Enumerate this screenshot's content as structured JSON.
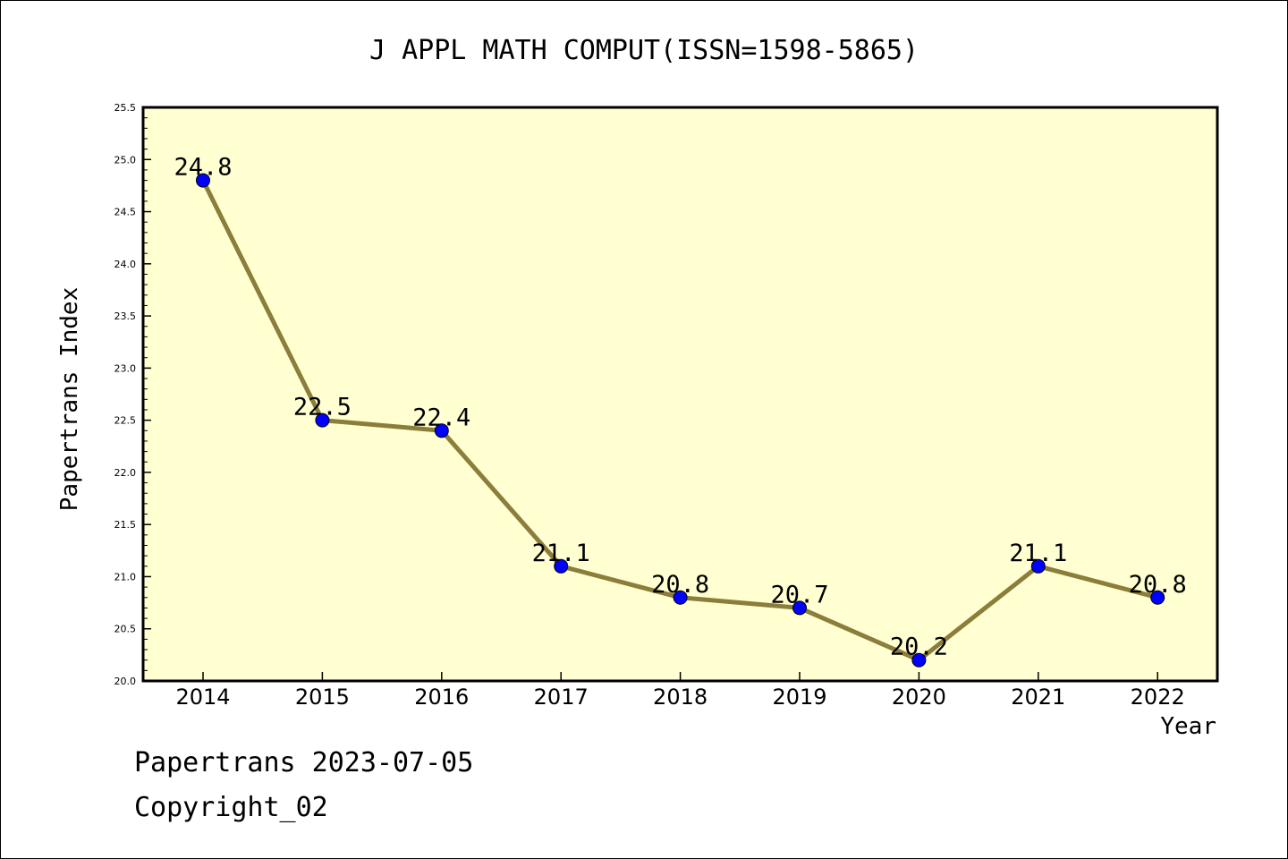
{
  "chart_data": {
    "type": "line",
    "title": "J APPL MATH COMPUT(ISSN=1598-5865)",
    "xlabel": "Year",
    "ylabel": "Papertrans Index",
    "x": [
      "2014",
      "2015",
      "2016",
      "2017",
      "2018",
      "2019",
      "2020",
      "2021",
      "2022"
    ],
    "series": [
      {
        "values": [
          24.8,
          22.5,
          22.4,
          21.1,
          20.8,
          20.7,
          20.2,
          21.1,
          20.8
        ],
        "labels": [
          "24.8",
          "22.5",
          "22.4",
          "21.1",
          "20.8",
          "20.7",
          "20.2",
          "21.1",
          "20.8"
        ]
      }
    ],
    "ylim": [
      20.0,
      25.5
    ],
    "yticks": [
      "20.0",
      "20.5",
      "21.0",
      "21.5",
      "22.0",
      "22.5",
      "23.0",
      "23.5",
      "24.0",
      "24.5",
      "25.0",
      "25.5"
    ],
    "grid": false,
    "colors": {
      "plot_background": "#ffffd2",
      "line": "#8b7d3a",
      "marker": "#0000ff"
    }
  },
  "footer": {
    "date_line": "Papertrans 2023-07-05",
    "copyright": "Copyright_02"
  }
}
